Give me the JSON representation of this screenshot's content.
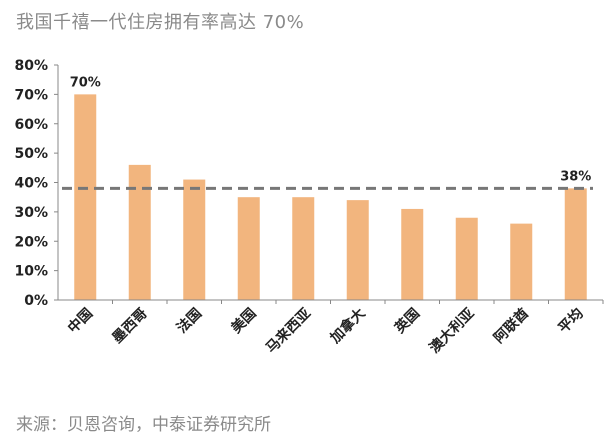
{
  "title": "我国千禧一代住房拥有率高达 70%",
  "source": "来源：贝恩咨询，中泰证券研究所",
  "chart_data": {
    "type": "bar",
    "title": "我国千禧一代住房拥有率高达 70%",
    "categories": [
      "中国",
      "墨西哥",
      "法国",
      "美国",
      "马来西亚",
      "加拿大",
      "英国",
      "澳大利亚",
      "阿联酋",
      "平均"
    ],
    "values": [
      70,
      46,
      41,
      35,
      35,
      34,
      31,
      28,
      26,
      38
    ],
    "data_labels": [
      {
        "index": 0,
        "text": "70%"
      },
      {
        "index": 9,
        "text": "38%"
      }
    ],
    "reference_line": {
      "value": 38,
      "style": "dashed",
      "color": "#777777"
    },
    "yticks": [
      "0%",
      "10%",
      "20%",
      "30%",
      "40%",
      "50%",
      "60%",
      "70%",
      "80%"
    ],
    "ylim": [
      0,
      80
    ],
    "xlabel": "",
    "ylabel": "",
    "grid": false,
    "bar_color": "#f2b57e"
  }
}
